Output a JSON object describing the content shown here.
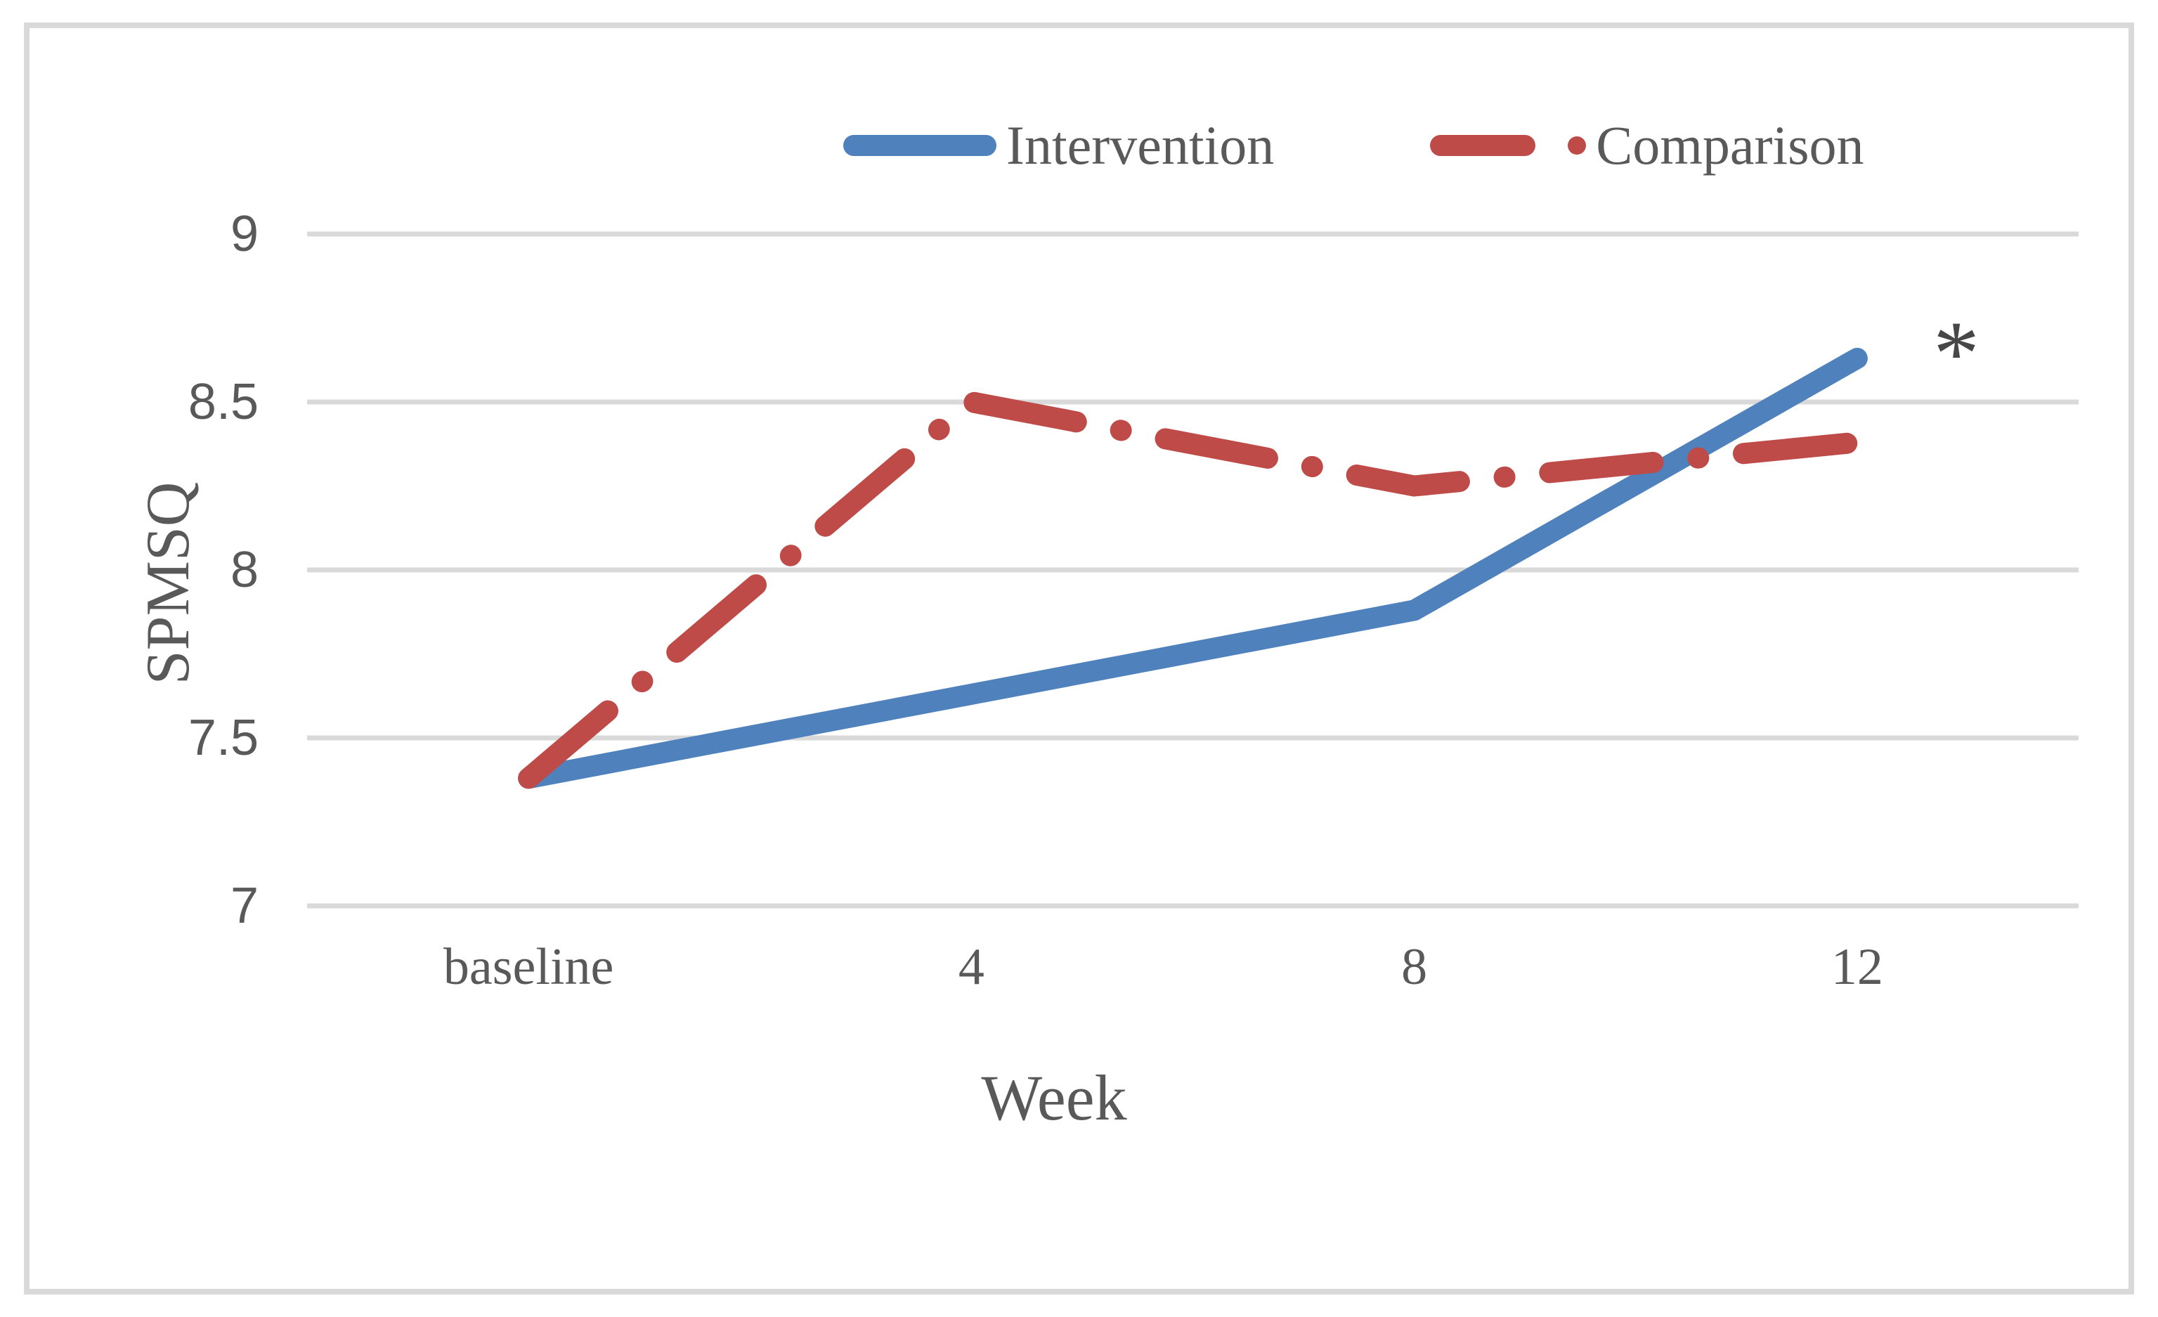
{
  "figure": {
    "background": "#FFFFFF",
    "border_color": "#D9D9D9"
  },
  "legend": {
    "position": "top-center",
    "items": [
      {
        "label": "Intervention",
        "color": "#4F81BD",
        "style": "solid",
        "icon": "solid-line-swatch"
      },
      {
        "label": "Comparison",
        "color": "#BE4B48",
        "style": "dash-dot",
        "icon": "dash-dot-line-swatch"
      }
    ]
  },
  "chart_data": {
    "type": "line",
    "categories": [
      "baseline",
      "4",
      "8",
      "12"
    ],
    "series": [
      {
        "name": "Intervention",
        "color": "#4F81BD",
        "line_style": "solid",
        "values": [
          7.38,
          7.63,
          7.88,
          8.63
        ]
      },
      {
        "name": "Comparison",
        "color": "#BE4B48",
        "line_style": "dash-dot",
        "values": [
          7.38,
          8.5,
          8.25,
          8.38
        ]
      }
    ],
    "title": "",
    "xlabel": "Week",
    "ylabel": "SPMSQ",
    "ylim": [
      7,
      9
    ],
    "y_ticks": [
      7,
      7.5,
      8,
      8.5,
      9
    ],
    "y_tick_labels": [
      "7",
      "7.5",
      "8",
      "8.5",
      "9"
    ],
    "grid": "horizontal",
    "legend_position": "top-center",
    "annotation": {
      "text": "*",
      "attached_to": "Intervention",
      "position": "right-of-last-point"
    }
  },
  "colors": {
    "gridline": "#D9D9D9",
    "tick_label": "#595959",
    "axis_title": "#595959",
    "annotation": "#474747"
  }
}
